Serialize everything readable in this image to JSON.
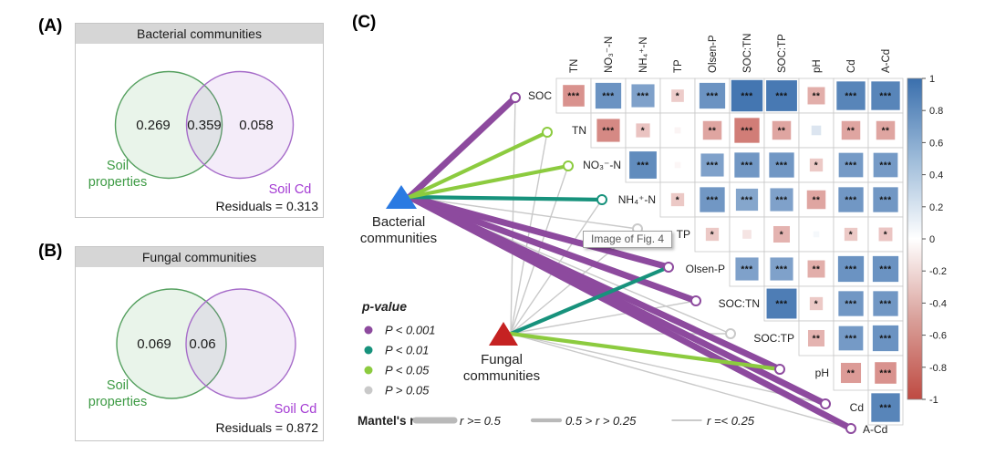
{
  "panel_a": {
    "tag": "(A)",
    "title": "Bacterial communities",
    "left_value": "0.269",
    "overlap_value": "0.359",
    "right_value": "0.058",
    "left_label_line1": "Soil",
    "left_label_line2": "properties",
    "right_label": "Soil Cd",
    "residuals": "Residuals = 0.313"
  },
  "panel_b": {
    "tag": "(B)",
    "title": "Fungal communities",
    "left_value": "0.069",
    "overlap_value": "0.06",
    "right_value": "",
    "left_label_line1": "Soil",
    "left_label_line2": "properties",
    "right_label": "Soil Cd",
    "residuals": "Residuals = 0.872"
  },
  "panel_c": {
    "tag": "(C)",
    "tooltip": "Image of Fig. 4"
  },
  "colors": {
    "venn_green_stroke": "#55a05f",
    "venn_purple_stroke": "#a66cc9",
    "green_label": "#3c9a43",
    "purple_label": "#a43bd3",
    "p001": "#8d4a9e",
    "p01": "#17927c",
    "p05": "#8ccb3f",
    "ns": "#c9c9c9",
    "bacterial_triangle": "#2a7ae2",
    "fungal_triangle": "#c52222",
    "heat_blue": "#3a6fad",
    "heat_red": "#bf4a42"
  },
  "chart_data": [
    {
      "type": "venn",
      "panel": "A",
      "title": "Bacterial communities",
      "sets": [
        "Soil properties",
        "Soil Cd"
      ],
      "soil_properties_only": 0.269,
      "shared": 0.359,
      "soil_cd_only": 0.058,
      "residuals": 0.313
    },
    {
      "type": "venn",
      "panel": "B",
      "title": "Fungal communities",
      "sets": [
        "Soil properties",
        "Soil Cd"
      ],
      "soil_properties_only": 0.069,
      "shared": 0.06,
      "soil_cd_only": null,
      "residuals": 0.872
    },
    {
      "type": "heatmap",
      "panel": "C",
      "variables": [
        "SOC",
        "TN",
        "NO₃⁻-N",
        "NH₄⁺-N",
        "TP",
        "Olsen-P",
        "SOC:TN",
        "SOC:TP",
        "pH",
        "Cd",
        "A-Cd"
      ],
      "groups": [
        {
          "name": "Bacterial communities",
          "label_lines": [
            "Bacterial",
            "communities"
          ],
          "color": "#2a7ae2"
        },
        {
          "name": "Fungal communities",
          "label_lines": [
            "Fungal",
            "communities"
          ],
          "color": "#c52222"
        }
      ],
      "matrix": [
        {
          "row": "SOC",
          "cells": [
            {
              "col": "TN",
              "r": -0.6,
              "sig": "***"
            },
            {
              "col": "NO₃⁻-N",
              "r": 0.75,
              "sig": "***"
            },
            {
              "col": "NH₄⁺-N",
              "r": 0.65,
              "sig": "***"
            },
            {
              "col": "TP",
              "r": -0.28,
              "sig": "*"
            },
            {
              "col": "Olsen-P",
              "r": 0.75,
              "sig": "***"
            },
            {
              "col": "SOC:TN",
              "r": 0.95,
              "sig": "***"
            },
            {
              "col": "SOC:TP",
              "r": 0.93,
              "sig": "***"
            },
            {
              "col": "pH",
              "r": -0.45,
              "sig": "**"
            },
            {
              "col": "Cd",
              "r": 0.85,
              "sig": "***"
            },
            {
              "col": "A-Cd",
              "r": 0.85,
              "sig": "***"
            }
          ]
        },
        {
          "row": "TN",
          "cells": [
            {
              "col": "NO₃⁻-N",
              "r": -0.65,
              "sig": "***"
            },
            {
              "col": "NH₄⁺-N",
              "r": -0.33,
              "sig": "*"
            },
            {
              "col": "TP",
              "r": -0.06,
              "sig": ""
            },
            {
              "col": "Olsen-P",
              "r": -0.5,
              "sig": "**"
            },
            {
              "col": "SOC:TN",
              "r": -0.72,
              "sig": "***"
            },
            {
              "col": "SOC:TP",
              "r": -0.5,
              "sig": "**"
            },
            {
              "col": "pH",
              "r": 0.18,
              "sig": ""
            },
            {
              "col": "Cd",
              "r": -0.5,
              "sig": "**"
            },
            {
              "col": "A-Cd",
              "r": -0.5,
              "sig": "**"
            }
          ]
        },
        {
          "row": "NO₃⁻-N",
          "cells": [
            {
              "col": "NH₄⁺-N",
              "r": 0.8,
              "sig": "***"
            },
            {
              "col": "TP",
              "r": -0.05,
              "sig": ""
            },
            {
              "col": "Olsen-P",
              "r": 0.65,
              "sig": "***"
            },
            {
              "col": "SOC:TN",
              "r": 0.72,
              "sig": "***"
            },
            {
              "col": "SOC:TP",
              "r": 0.72,
              "sig": "***"
            },
            {
              "col": "pH",
              "r": -0.3,
              "sig": "*"
            },
            {
              "col": "Cd",
              "r": 0.7,
              "sig": "***"
            },
            {
              "col": "A-Cd",
              "r": 0.7,
              "sig": "***"
            }
          ]
        },
        {
          "row": "NH₄⁺-N",
          "cells": [
            {
              "col": "TP",
              "r": -0.3,
              "sig": "*"
            },
            {
              "col": "Olsen-P",
              "r": 0.72,
              "sig": "***"
            },
            {
              "col": "SOC:TN",
              "r": 0.62,
              "sig": "***"
            },
            {
              "col": "SOC:TP",
              "r": 0.65,
              "sig": "***"
            },
            {
              "col": "pH",
              "r": -0.5,
              "sig": "**"
            },
            {
              "col": "Cd",
              "r": 0.72,
              "sig": "***"
            },
            {
              "col": "A-Cd",
              "r": 0.72,
              "sig": "***"
            }
          ]
        },
        {
          "row": "TP",
          "cells": [
            {
              "col": "Olsen-P",
              "r": -0.3,
              "sig": "*"
            },
            {
              "col": "SOC:TN",
              "r": -0.15,
              "sig": ""
            },
            {
              "col": "SOC:TP",
              "r": -0.42,
              "sig": "*"
            },
            {
              "col": "pH",
              "r": 0.05,
              "sig": ""
            },
            {
              "col": "Cd",
              "r": -0.3,
              "sig": "*"
            },
            {
              "col": "A-Cd",
              "r": -0.32,
              "sig": "*"
            }
          ]
        },
        {
          "row": "Olsen-P",
          "cells": [
            {
              "col": "SOC:TN",
              "r": 0.65,
              "sig": "***"
            },
            {
              "col": "SOC:TP",
              "r": 0.65,
              "sig": "***"
            },
            {
              "col": "pH",
              "r": -0.45,
              "sig": "**"
            },
            {
              "col": "Cd",
              "r": 0.75,
              "sig": "***"
            },
            {
              "col": "A-Cd",
              "r": 0.75,
              "sig": "***"
            }
          ]
        },
        {
          "row": "SOC:TN",
          "cells": [
            {
              "col": "SOC:TP",
              "r": 0.9,
              "sig": "***"
            },
            {
              "col": "pH",
              "r": -0.3,
              "sig": "*"
            },
            {
              "col": "Cd",
              "r": 0.72,
              "sig": "***"
            },
            {
              "col": "A-Cd",
              "r": 0.72,
              "sig": "***"
            }
          ]
        },
        {
          "row": "SOC:TP",
          "cells": [
            {
              "col": "pH",
              "r": -0.42,
              "sig": "**"
            },
            {
              "col": "Cd",
              "r": 0.7,
              "sig": "***"
            },
            {
              "col": "A-Cd",
              "r": 0.75,
              "sig": "***"
            }
          ]
        },
        {
          "row": "pH",
          "cells": [
            {
              "col": "Cd",
              "r": -0.55,
              "sig": "**"
            },
            {
              "col": "A-Cd",
              "r": -0.6,
              "sig": "***"
            }
          ]
        },
        {
          "row": "Cd",
          "cells": [
            {
              "col": "A-Cd",
              "r": 0.85,
              "sig": "***"
            }
          ]
        }
      ],
      "mantel_edges": [
        {
          "from": "Bacterial communities",
          "to": "SOC",
          "p": "P < 0.001",
          "r": "r >= 0.5"
        },
        {
          "from": "Bacterial communities",
          "to": "TN",
          "p": "P < 0.05",
          "r": "0.5 > r > 0.25"
        },
        {
          "from": "Bacterial communities",
          "to": "NO₃⁻-N",
          "p": "P < 0.05",
          "r": "0.5 > r > 0.25"
        },
        {
          "from": "Bacterial communities",
          "to": "NH₄⁺-N",
          "p": "P < 0.01",
          "r": "0.5 > r > 0.25"
        },
        {
          "from": "Bacterial communities",
          "to": "TP",
          "p": "P > 0.05",
          "r": "r =< 0.25"
        },
        {
          "from": "Bacterial communities",
          "to": "Olsen-P",
          "p": "P < 0.001",
          "r": "r >= 0.5"
        },
        {
          "from": "Bacterial communities",
          "to": "SOC:TN",
          "p": "P < 0.001",
          "r": "r >= 0.5"
        },
        {
          "from": "Bacterial communities",
          "to": "SOC:TP",
          "p": "P > 0.05",
          "r": "r =< 0.25"
        },
        {
          "from": "Bacterial communities",
          "to": "pH",
          "p": "P < 0.001",
          "r": "r >= 0.5"
        },
        {
          "from": "Bacterial communities",
          "to": "Cd",
          "p": "P < 0.001",
          "r": "r >= 0.5"
        },
        {
          "from": "Bacterial communities",
          "to": "A-Cd",
          "p": "P < 0.001",
          "r": "r >= 0.5"
        },
        {
          "from": "Fungal communities",
          "to": "SOC",
          "p": "P > 0.05",
          "r": "r =< 0.25"
        },
        {
          "from": "Fungal communities",
          "to": "TN",
          "p": "P > 0.05",
          "r": "r =< 0.25"
        },
        {
          "from": "Fungal communities",
          "to": "NO₃⁻-N",
          "p": "P > 0.05",
          "r": "r =< 0.25"
        },
        {
          "from": "Fungal communities",
          "to": "NH₄⁺-N",
          "p": "P > 0.05",
          "r": "r =< 0.25"
        },
        {
          "from": "Fungal communities",
          "to": "TP",
          "p": "P > 0.05",
          "r": "r =< 0.25"
        },
        {
          "from": "Fungal communities",
          "to": "Olsen-P",
          "p": "P < 0.01",
          "r": "0.5 > r > 0.25"
        },
        {
          "from": "Fungal communities",
          "to": "SOC:TN",
          "p": "P > 0.05",
          "r": "r =< 0.25"
        },
        {
          "from": "Fungal communities",
          "to": "SOC:TP",
          "p": "P > 0.05",
          "r": "r =< 0.25"
        },
        {
          "from": "Fungal communities",
          "to": "pH",
          "p": "P < 0.05",
          "r": "0.5 > r > 0.25"
        },
        {
          "from": "Fungal communities",
          "to": "Cd",
          "p": "P > 0.05",
          "r": "r =< 0.25"
        },
        {
          "from": "Fungal communities",
          "to": "A-Cd",
          "p": "P > 0.05",
          "r": "r =< 0.25"
        }
      ],
      "legend": {
        "p_title": "p-value",
        "p_items": [
          {
            "label": "P < 0.001",
            "color": "#8d4a9e"
          },
          {
            "label": "P < 0.01",
            "color": "#17927c"
          },
          {
            "label": "P < 0.05",
            "color": "#8ccb3f"
          },
          {
            "label": "P > 0.05",
            "color": "#c9c9c9"
          }
        ],
        "mantel_title": "Mantel's r",
        "mantel_items": [
          {
            "label": "r >= 0.5",
            "width": 7
          },
          {
            "label": "0.5 > r > 0.25",
            "width": 4.2
          },
          {
            "label": "r =< 0.25",
            "width": 1.4
          }
        ]
      },
      "colorbar": {
        "ticks": [
          "1",
          "0.8",
          "0.6",
          "0.4",
          "0.2",
          "0",
          "-0.2",
          "-0.4",
          "-0.6",
          "-0.8",
          "-1"
        ],
        "top_color": "#3a6fad",
        "bottom_color": "#bf4a42"
      }
    }
  ]
}
